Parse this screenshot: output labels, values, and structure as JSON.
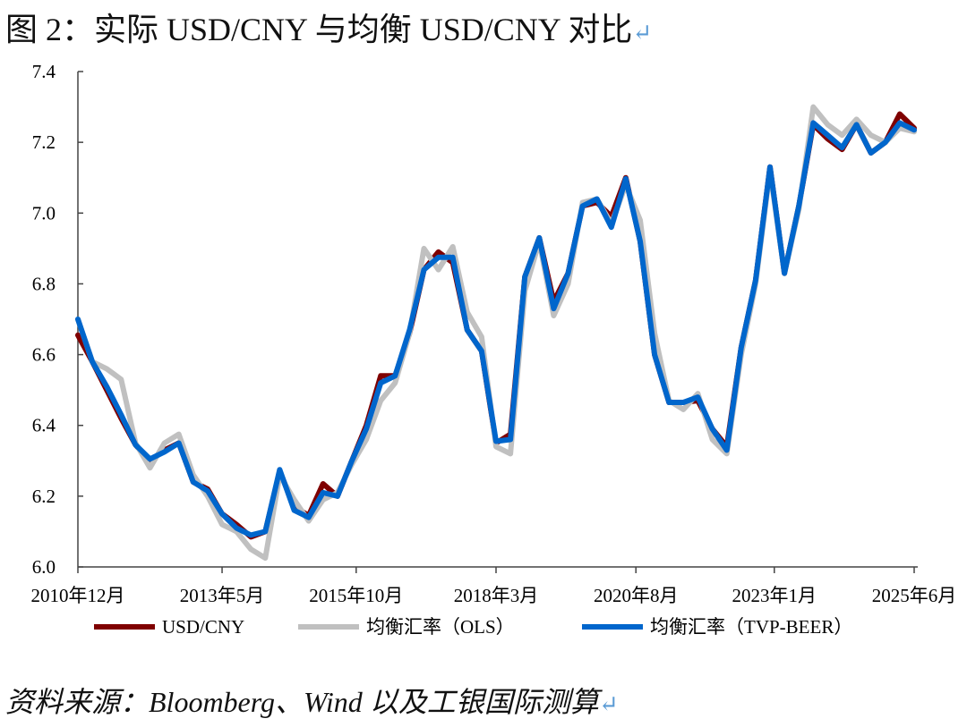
{
  "title": "图 2：实际 USD/CNY 与均衡 USD/CNY 对比",
  "source": "资料来源：Bloomberg、Wind 以及工银国际测算",
  "return_mark": "↵",
  "chart_data": {
    "type": "line",
    "title": "图 2：实际 USD/CNY 与均衡 USD/CNY 对比",
    "xlabel": "",
    "ylabel": "",
    "ylim": [
      6.0,
      7.4
    ],
    "yticks": [
      "6.0",
      "6.2",
      "6.4",
      "6.6",
      "6.8",
      "7.0",
      "7.2",
      "7.4"
    ],
    "xtick_labels": [
      "2010年12月",
      "2013年5月",
      "2015年10月",
      "2018年3月",
      "2020年8月",
      "2023年1月",
      "2025年6月"
    ],
    "xtick_indices": [
      0,
      10,
      19.3,
      29,
      38.7,
      48.3,
      58
    ],
    "grid": false,
    "legend_position": "bottom",
    "frequency": "quarterly",
    "series": [
      {
        "name": "USD/CNY",
        "color": "#7f0000",
        "values": [
          6.655,
          6.58,
          6.5,
          6.42,
          6.345,
          6.3,
          6.33,
          6.35,
          6.24,
          6.22,
          6.15,
          6.12,
          6.085,
          6.1,
          6.27,
          6.17,
          6.145,
          6.235,
          6.2,
          6.3,
          6.4,
          6.54,
          6.54,
          6.66,
          6.84,
          6.89,
          6.86,
          6.67,
          6.61,
          6.35,
          6.375,
          6.82,
          6.93,
          6.75,
          6.83,
          7.02,
          7.03,
          6.99,
          7.1,
          6.92,
          6.6,
          6.465,
          6.465,
          6.47,
          6.39,
          6.34,
          6.62,
          6.81,
          7.13,
          6.83,
          7.02,
          7.25,
          7.21,
          7.18,
          7.25,
          7.17,
          7.2,
          7.28,
          7.24
        ]
      },
      {
        "name": "均衡汇率（OLS）",
        "color": "#c0c0c0",
        "values": [
          6.7,
          6.58,
          6.56,
          6.53,
          6.35,
          6.28,
          6.35,
          6.375,
          6.26,
          6.2,
          6.12,
          6.1,
          6.05,
          6.025,
          6.26,
          6.19,
          6.13,
          6.19,
          6.21,
          6.29,
          6.36,
          6.47,
          6.52,
          6.66,
          6.9,
          6.84,
          6.905,
          6.72,
          6.65,
          6.34,
          6.32,
          6.78,
          6.92,
          6.71,
          6.8,
          7.03,
          7.04,
          6.97,
          7.08,
          6.98,
          6.66,
          6.47,
          6.445,
          6.49,
          6.36,
          6.32,
          6.6,
          6.8,
          7.12,
          6.83,
          7.01,
          7.3,
          7.25,
          7.22,
          7.265,
          7.22,
          7.2,
          7.24,
          7.23
        ]
      },
      {
        "name": "均衡汇率（TVP-BEER）",
        "color": "#0066cc",
        "values": [
          6.7,
          6.58,
          6.51,
          6.43,
          6.345,
          6.305,
          6.325,
          6.35,
          6.24,
          6.215,
          6.15,
          6.11,
          6.09,
          6.1,
          6.275,
          6.16,
          6.14,
          6.21,
          6.2,
          6.3,
          6.39,
          6.52,
          6.54,
          6.67,
          6.84,
          6.875,
          6.875,
          6.67,
          6.61,
          6.355,
          6.36,
          6.82,
          6.93,
          6.73,
          6.83,
          7.02,
          7.04,
          6.96,
          7.097,
          6.92,
          6.6,
          6.465,
          6.465,
          6.48,
          6.39,
          6.33,
          6.62,
          6.81,
          7.13,
          6.83,
          7.02,
          7.255,
          7.22,
          7.185,
          7.25,
          7.17,
          7.2,
          7.255,
          7.235
        ]
      }
    ]
  }
}
